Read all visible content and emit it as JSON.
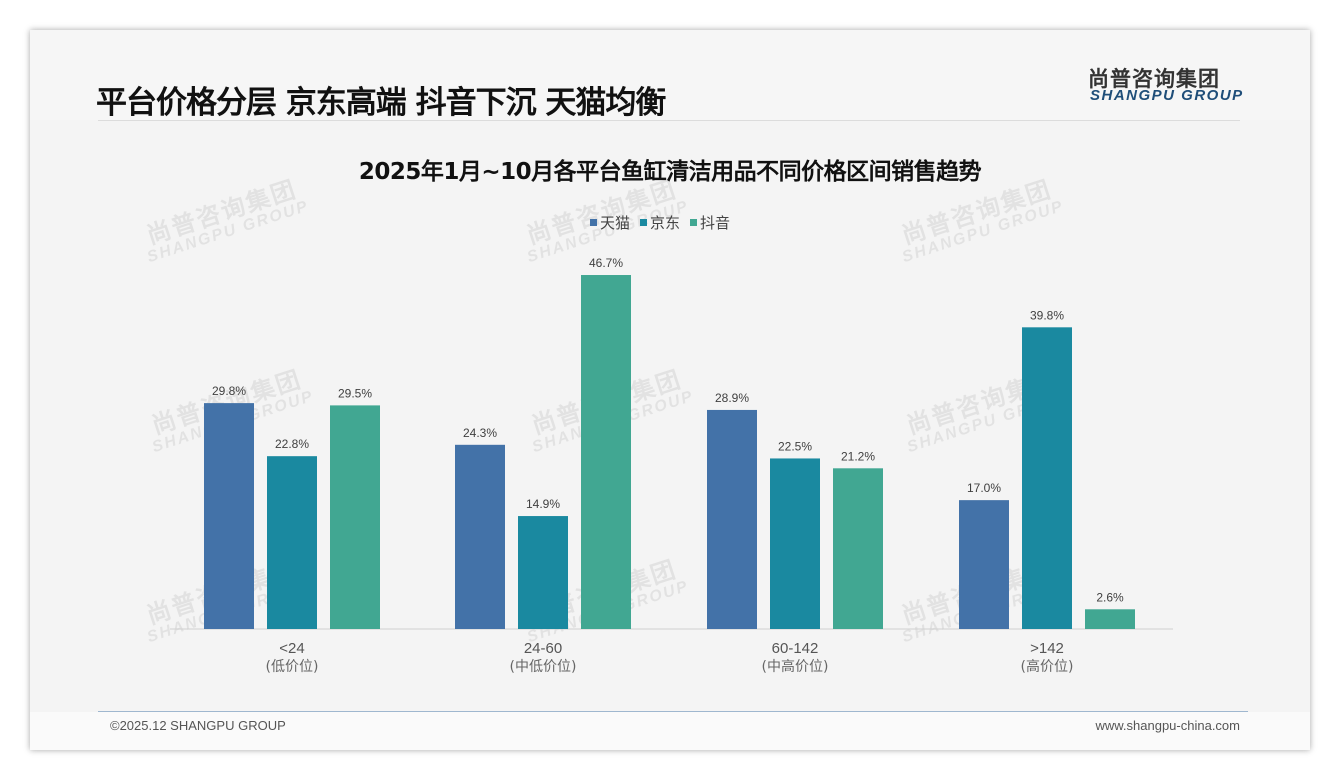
{
  "header": {
    "title": "平台价格分层 京东高端 抖音下沉 天猫均衡",
    "logo_cn": "尚普咨询集团",
    "logo_en": "SHANGPU GROUP"
  },
  "watermark": {
    "cn": "尚普咨询集团",
    "en": "SHANGPU GROUP"
  },
  "footer": {
    "copyright": "©2025.12 SHANGPU GROUP",
    "url": "www.shangpu-china.com"
  },
  "colors": {
    "tmall": "#4372a8",
    "jd": "#1a89a0",
    "douyin": "#41a792"
  },
  "chart_data": {
    "type": "bar",
    "title": "2025年1月~10月各平台鱼缸清洁用品不同价格区间销售趋势",
    "categories": [
      "<24",
      "24-60",
      "60-142",
      ">142"
    ],
    "category_sublabels": [
      "(低价位)",
      "(中低价位)",
      "(中高价位)",
      "(高价位)"
    ],
    "series": [
      {
        "name": "天猫",
        "values": [
          29.8,
          24.3,
          28.9,
          17.0
        ],
        "labels": [
          "29.8%",
          "24.3%",
          "28.9%",
          "17.0%"
        ]
      },
      {
        "name": "京东",
        "values": [
          22.8,
          14.9,
          22.5,
          39.8
        ],
        "labels": [
          "22.8%",
          "14.9%",
          "22.5%",
          "39.8%"
        ]
      },
      {
        "name": "抖音",
        "values": [
          29.5,
          46.7,
          21.2,
          2.6
        ],
        "labels": [
          "29.5%",
          "46.7%",
          "21.2%",
          "2.6%"
        ]
      }
    ],
    "unit": "%",
    "ylim": [
      0,
      50
    ],
    "grid": false,
    "legend_position": "top-center"
  }
}
